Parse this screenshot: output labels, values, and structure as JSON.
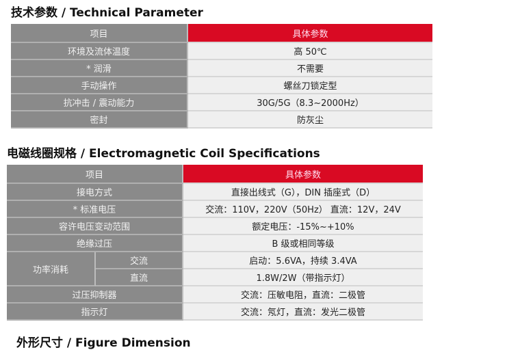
{
  "sections": [
    {
      "title": "技术参数 / Technical Parameter"
    },
    {
      "title": "电磁线圈规格 / Electromagnetic Coil Specifications"
    },
    {
      "title": "外形尺寸 / Figure Dimension"
    }
  ],
  "colors": {
    "header_accent": "#d90a23",
    "label_bg": "#8a8a8a",
    "value_bg": "#efefef"
  },
  "table1": {
    "header": [
      "项目",
      "具体参数"
    ],
    "rows": [
      [
        "环境及流体温度",
        "高 50℃"
      ],
      [
        "* 润滑",
        "不需要"
      ],
      [
        "手动操作",
        "螺丝刀锁定型"
      ],
      [
        "抗冲击 / 震动能力",
        "30G/5G（8.3~2000Hz）"
      ],
      [
        "密封",
        "防灰尘"
      ]
    ]
  },
  "table2": {
    "header": [
      "项目",
      "具体参数"
    ],
    "rows": [
      [
        "接电方式",
        "直接出线式（G），DIN 插座式（D）"
      ],
      [
        "* 标准电压",
        "交流：110V，220V（50Hz） 直流：12V，24V"
      ],
      [
        "容许电压变动范围",
        "额定电压：-15%~+10%"
      ],
      [
        "绝缘过压",
        "B 级或相同等级"
      ]
    ],
    "power": {
      "label": "功率消耗",
      "ac_label": "交流",
      "ac_value": "启动：5.6VA，持续 3.4VA",
      "dc_label": "直流",
      "dc_value": "1.8W/2W（带指示灯）"
    },
    "rows_after": [
      [
        "过压抑制器",
        "交流：压敏电阻，直流：二极管"
      ],
      [
        "指示灯",
        "交流：氖灯，直流：发光二极管"
      ]
    ]
  }
}
